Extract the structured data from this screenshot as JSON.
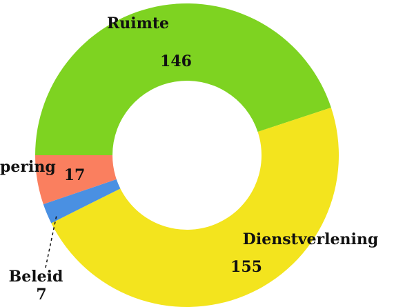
{
  "chart_data": {
    "type": "pie",
    "categories": [
      "Ruimte",
      "Dienstverlening",
      "Beleid",
      "pering"
    ],
    "values": [
      146,
      155,
      7,
      17
    ],
    "colors": [
      "#7ed321",
      "#f3e41e",
      "#4a90e2",
      "#fa7f5f"
    ],
    "donut": true
  }
}
